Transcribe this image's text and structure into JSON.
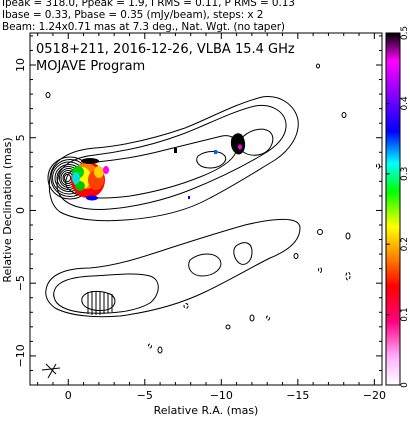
{
  "header": {
    "line1": "Ipeak = 318.0, Ppeak = 1.9, I RMS = 0.11, P RMS = 0.13",
    "line2": "Ibase = 0.33, Pbase = 0.35 (mJy/beam), steps: x 2",
    "line3": "Beam: 1.24x0.71 mas at 7.3 deg., Nat. Wgt. (no taper)"
  },
  "chart_data": {
    "type": "contour",
    "title": "0518+211, 2016-12-26, VLBA 15.4 GHz",
    "subtitle": "MOJAVE Program",
    "xlabel": "Relative R.A. (mas)",
    "ylabel": "Relative Declination (mas)",
    "xlim": [
      2.5,
      -20.5
    ],
    "ylim": [
      -12,
      12.2
    ],
    "xticks": [
      0,
      -5,
      -10,
      -15,
      -20
    ],
    "yticks": [
      -10,
      -5,
      0,
      5,
      10
    ],
    "grid": false,
    "colorbar": {
      "range": [
        0,
        0.5
      ],
      "ticks": [
        0,
        0.1,
        0.2,
        0.3,
        0.4,
        0.5
      ],
      "colors": [
        "#ffffff",
        "#ffb0ff",
        "#ff0080",
        "#ff0000",
        "#ff8000",
        "#ffff00",
        "#00ff00",
        "#00ffff",
        "#0000ff",
        "#8000ff",
        "#ff00ff",
        "#000000"
      ]
    },
    "core": {
      "x": 0,
      "y": 0,
      "peak": 318.0
    },
    "contour_levels_mJy": [
      0.33,
      0.66,
      1.32,
      2.64,
      5.28,
      10.56,
      21.12,
      42.24,
      84.48,
      168.96
    ],
    "beam": {
      "major": 1.24,
      "minor": 0.71,
      "pa_deg": 7.3
    }
  }
}
